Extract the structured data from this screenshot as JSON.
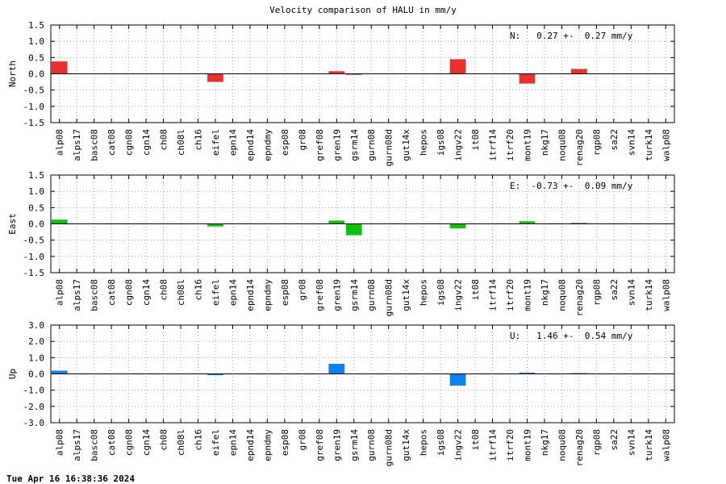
{
  "title": "Velocity comparison of HALU in mm/y",
  "footer": "Tue Apr 16 16:38:36 2024",
  "chart_data": [
    {
      "type": "bar",
      "ylabel": "North",
      "annotation": "N:   0.27 +-  0.27 mm/y",
      "color": "#e83030",
      "ylim": [
        -1.5,
        1.5
      ],
      "yticks": [
        1.5,
        1.0,
        0.5,
        0.0,
        -0.5,
        -1.0,
        -1.5
      ],
      "ytick_labels": [
        "1.5",
        "1.0",
        "0.5",
        "0.0",
        "-0.5",
        "-1.0",
        "-1.5"
      ],
      "grid": true,
      "categories": [
        "alp08",
        "alps17",
        "basc08",
        "cat08",
        "cgn08",
        "cgn14",
        "ch08",
        "ch08l",
        "ch16",
        "eifel",
        "epn14",
        "epnd14",
        "epndmy",
        "esp08",
        "gr08",
        "gref08",
        "gren19",
        "gsrm14",
        "gurn08",
        "gurn08d",
        "gut14x",
        "hepos",
        "igs08",
        "ingv22",
        "it08",
        "itrf14",
        "itrf20",
        "mont19",
        "nkg17",
        "noqu08",
        "renag20",
        "rgp08",
        "sa22",
        "svn14",
        "turk14",
        "walp08"
      ],
      "values": [
        0.38,
        0,
        0,
        0,
        0,
        0,
        0,
        0,
        0,
        -0.25,
        0,
        0,
        0,
        0,
        0,
        0,
        0.08,
        -0.03,
        0,
        0,
        0,
        0,
        0,
        0.45,
        0,
        0,
        0,
        -0.3,
        0,
        0,
        0.15,
        0,
        0,
        0,
        0,
        0
      ]
    },
    {
      "type": "bar",
      "ylabel": "East",
      "annotation": "E:  -0.73 +-  0.09 mm/y",
      "color": "#10c010",
      "ylim": [
        -1.5,
        1.5
      ],
      "yticks": [
        1.5,
        1.0,
        0.5,
        0.0,
        -0.5,
        -1.0,
        -1.5
      ],
      "ytick_labels": [
        "1.5",
        "1.0",
        "0.5",
        "0.0",
        "-0.5",
        "-1.0",
        "-1.5"
      ],
      "grid": true,
      "categories": [
        "alp08",
        "alps17",
        "basc08",
        "cat08",
        "cgn08",
        "cgn14",
        "ch08",
        "ch08l",
        "ch16",
        "eifel",
        "epn14",
        "epnd14",
        "epndmy",
        "esp08",
        "gr08",
        "gref08",
        "gren19",
        "gsrm14",
        "gurn08",
        "gurn08d",
        "gut14x",
        "hepos",
        "igs08",
        "ingv22",
        "it08",
        "itrf14",
        "itrf20",
        "mont19",
        "nkg17",
        "noqu08",
        "renag20",
        "rgp08",
        "sa22",
        "svn14",
        "turk14",
        "walp08"
      ],
      "values": [
        0.13,
        0,
        0,
        0,
        0,
        0,
        0,
        0,
        0,
        -0.08,
        0,
        0,
        0,
        0,
        0,
        0,
        0.1,
        -0.35,
        0,
        0,
        0,
        0,
        0,
        -0.14,
        0,
        0,
        0,
        0.08,
        0,
        0,
        0.03,
        0,
        0,
        0,
        0,
        0
      ]
    },
    {
      "type": "bar",
      "ylabel": "Up",
      "annotation": "U:   1.46 +-  0.54 mm/y",
      "color": "#1080f0",
      "ylim": [
        -3.0,
        3.0
      ],
      "yticks": [
        3.0,
        2.0,
        1.0,
        0.0,
        -1.0,
        -2.0,
        -3.0
      ],
      "ytick_labels": [
        "3.0",
        "2.0",
        "1.0",
        "0.0",
        "-1.0",
        "-2.0",
        "-3.0"
      ],
      "grid": true,
      "categories": [
        "alp08",
        "alps17",
        "basc08",
        "cat08",
        "cgn08",
        "cgn14",
        "ch08",
        "ch08l",
        "ch16",
        "eifel",
        "epn14",
        "epnd14",
        "epndmy",
        "esp08",
        "gr08",
        "gref08",
        "gren19",
        "gsrm14",
        "gurn08",
        "gurn08d",
        "gut14x",
        "hepos",
        "igs08",
        "ingv22",
        "it08",
        "itrf14",
        "itrf20",
        "mont19",
        "nkg17",
        "noqu08",
        "renag20",
        "rgp08",
        "sa22",
        "svn14",
        "turk14",
        "walp08"
      ],
      "values": [
        0.2,
        0,
        0,
        0,
        0,
        0,
        0,
        0,
        0,
        -0.08,
        0,
        0,
        0,
        0,
        0,
        0,
        0.62,
        0,
        0,
        0,
        0,
        0,
        0,
        -0.72,
        0,
        0,
        0,
        0.08,
        0,
        0,
        0.05,
        0,
        0,
        0,
        0,
        0
      ]
    }
  ]
}
